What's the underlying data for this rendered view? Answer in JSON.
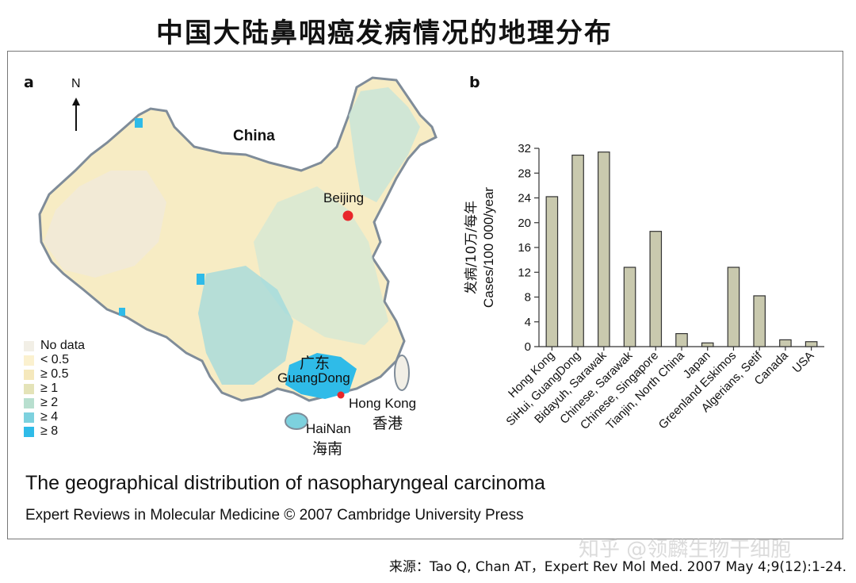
{
  "page": {
    "title": "中国大陆鼻咽癌发病情况的地理分布",
    "source": "来源：Tao Q, Chan AT，Expert Rev Mol Med. 2007 May 4;9(12):1-24.",
    "watermark": "知乎 @领麟生物干细胞"
  },
  "panel_a": {
    "letter": "a",
    "north": "N",
    "country": "China",
    "beijing": "Beijing",
    "guangdong_cn": "广东",
    "guangdong_en": "GuangDong",
    "hongkong_en": "Hong Kong",
    "hongkong_cn": "香港",
    "hainan_en": "HaiNan",
    "hainan_cn": "海南",
    "legend": [
      {
        "label": "No data",
        "color": "#f2efe6"
      },
      {
        "label": "< 0.5",
        "color": "#fbf1cf"
      },
      {
        "label": "≥ 0.5",
        "color": "#f5e8bc"
      },
      {
        "label": "≥ 1",
        "color": "#e4e3b8"
      },
      {
        "label": "≥ 2",
        "color": "#b8dfcf"
      },
      {
        "label": "≥ 4",
        "color": "#7dd1de"
      },
      {
        "label": "≥ 8",
        "color": "#2fbbe8"
      }
    ],
    "point_color": "#e8262a"
  },
  "panel_b": {
    "letter": "b"
  },
  "footer": {
    "title": "The geographical distribution of nasopharyngeal carcinoma",
    "credit": "Expert Reviews in Molecular Medicine © 2007 Cambridge University Press"
  },
  "chart_data": {
    "type": "bar",
    "categories": [
      "Hong Kong",
      "SiHui, GuangDong",
      "Bidayuh, Sarawak",
      "Chinese, Sarawak",
      "Chinese, Singapore",
      "Tianjin, North China",
      "Japan",
      "Greenland Eskimos",
      "Algerians, Setif",
      "Canada",
      "USA"
    ],
    "values": [
      24.2,
      30.9,
      31.4,
      12.8,
      18.6,
      2.1,
      0.6,
      12.8,
      8.2,
      1.1,
      0.8
    ],
    "ylabel_cn": "发病/10万/每年",
    "ylabel_en": "Cases/100 000/year",
    "ylim": [
      0,
      32
    ],
    "yticks": [
      0,
      4,
      8,
      12,
      16,
      20,
      24,
      28,
      32
    ],
    "bar_color": "#c9c9ae",
    "bar_edge": "#333333",
    "grid": false
  }
}
